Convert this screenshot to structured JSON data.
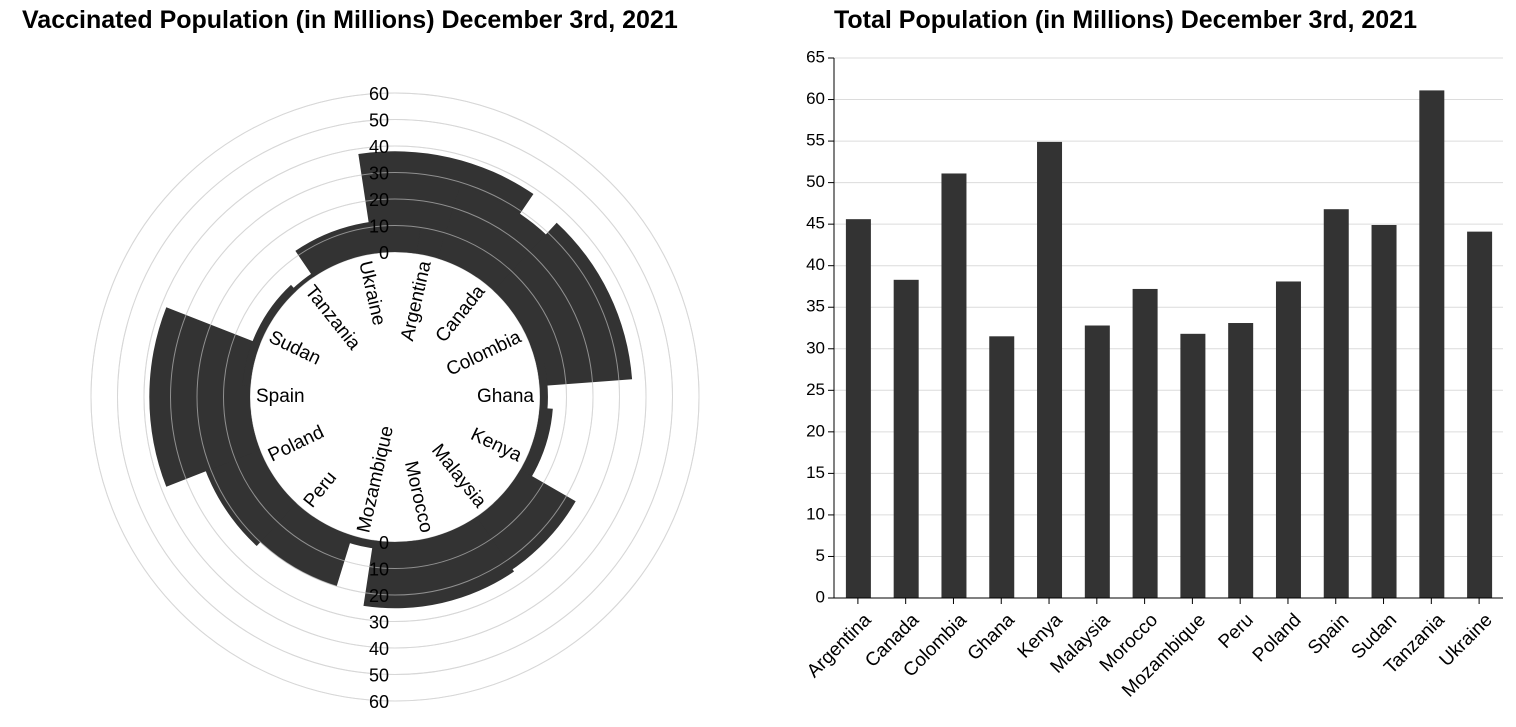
{
  "chart_data": [
    {
      "type": "bar",
      "title": "Vaccinated Population (in Millions) December 3rd, 2021",
      "categories": [
        "Argentina",
        "Canada",
        "Colombia",
        "Ghana",
        "Kenya",
        "Malaysia",
        "Morocco",
        "Mozambique",
        "Peru",
        "Poland",
        "Spain",
        "Sudan",
        "Tanzania",
        "Ukraine"
      ],
      "values": [
        38,
        29,
        35,
        3,
        5,
        24,
        25,
        3,
        20,
        22,
        38,
        3,
        1.5,
        12
      ],
      "tick_values": [
        0,
        10,
        20,
        30,
        40,
        50,
        60
      ],
      "ylim": [
        0,
        60
      ],
      "grid": true,
      "bar_color": "#333333"
    },
    {
      "type": "bar",
      "title": "Total Population (in Millions) December 3rd, 2021",
      "categories": [
        "Argentina",
        "Canada",
        "Colombia",
        "Ghana",
        "Kenya",
        "Malaysia",
        "Morocco",
        "Mozambique",
        "Peru",
        "Poland",
        "Spain",
        "Sudan",
        "Tanzania",
        "Ukraine"
      ],
      "values": [
        45.6,
        38.3,
        51.1,
        31.5,
        54.9,
        32.8,
        37.2,
        31.8,
        33.1,
        38.1,
        46.8,
        44.9,
        61.1,
        44.1
      ],
      "tick_values": [
        0,
        5,
        10,
        15,
        20,
        25,
        30,
        35,
        40,
        45,
        50,
        55,
        60,
        65
      ],
      "ylim": [
        0,
        65
      ],
      "grid": true,
      "bar_color": "#333333"
    }
  ]
}
